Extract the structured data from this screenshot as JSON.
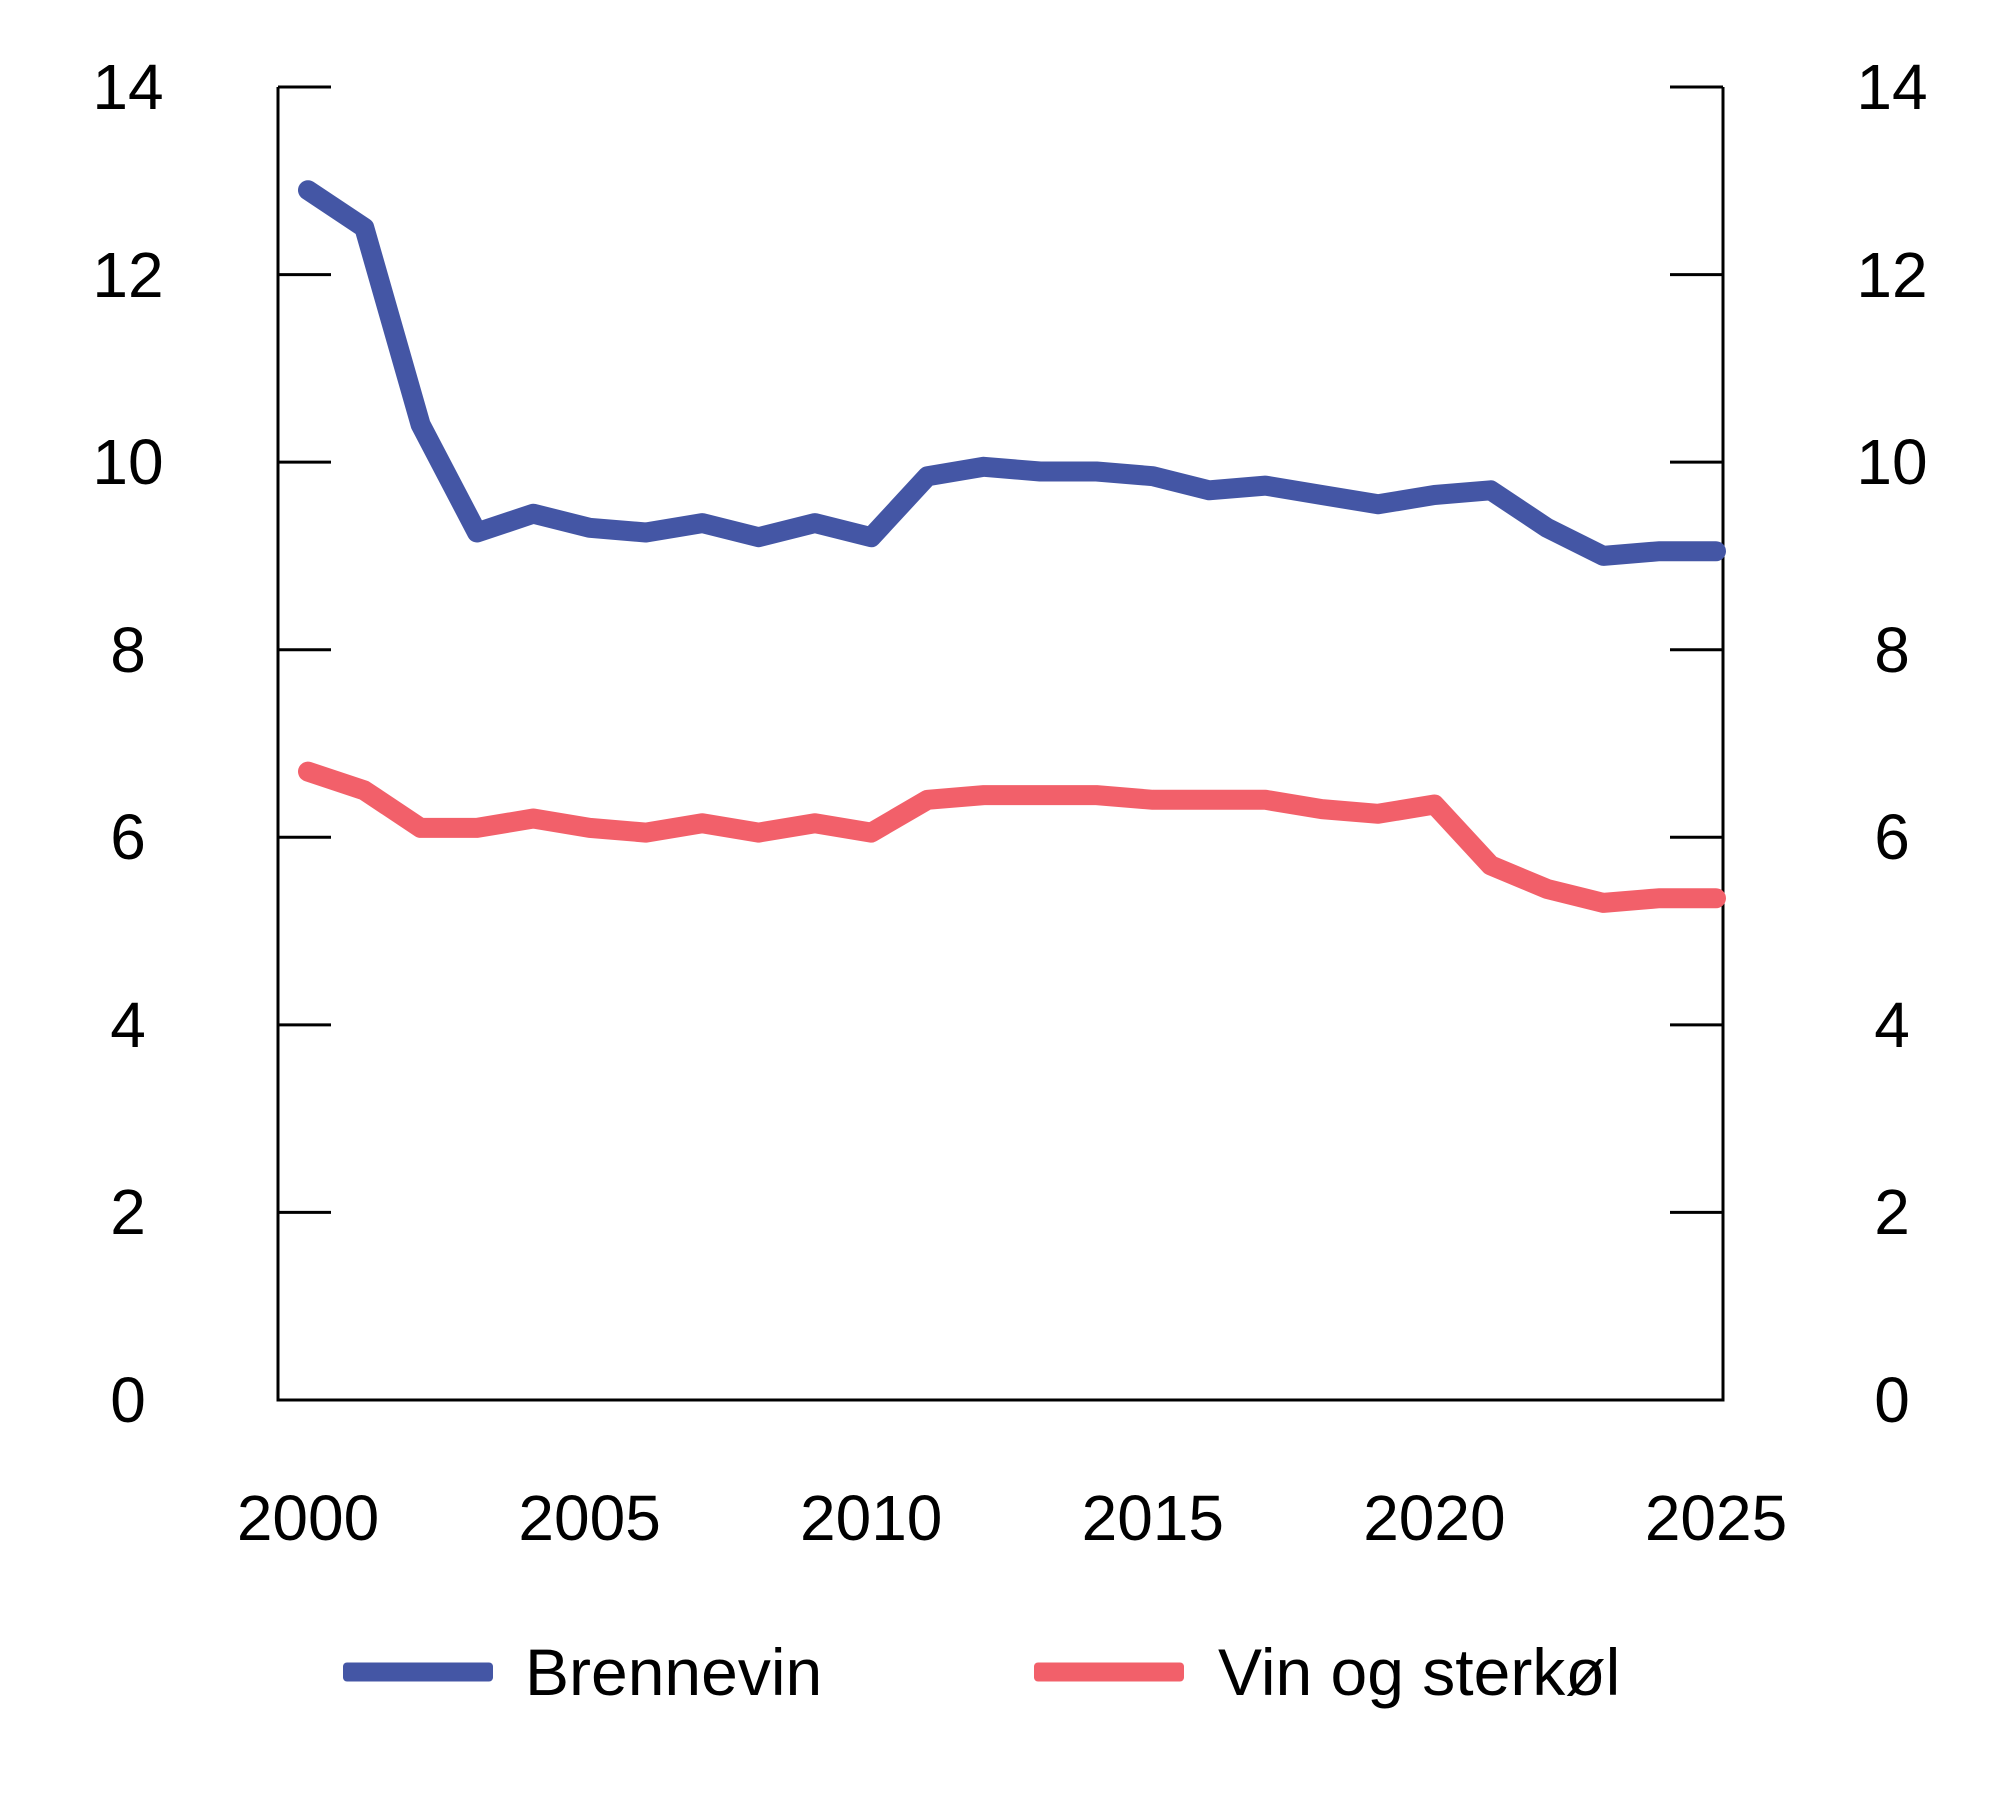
{
  "figure": {
    "background": "#ffffff",
    "text_color": "#000000",
    "axis_color": "#000000"
  },
  "chart_data": {
    "type": "line",
    "title": "",
    "xlabel": "",
    "ylabel": "",
    "x": [
      2000,
      2001,
      2002,
      2003,
      2004,
      2005,
      2006,
      2007,
      2008,
      2009,
      2010,
      2011,
      2012,
      2013,
      2014,
      2015,
      2016,
      2017,
      2018,
      2019,
      2020,
      2021,
      2022,
      2023,
      2024,
      2025
    ],
    "series": [
      {
        "name": "Brennevin",
        "color": "#4456a5",
        "values": [
          12.9,
          12.5,
          10.4,
          9.25,
          9.45,
          9.3,
          9.25,
          9.35,
          9.2,
          9.35,
          9.2,
          9.85,
          9.95,
          9.9,
          9.9,
          9.85,
          9.7,
          9.75,
          9.65,
          9.55,
          9.65,
          9.7,
          9.3,
          9.0,
          9.05,
          9.05
        ]
      },
      {
        "name": "Vin og sterkøl",
        "color": "#f2606a",
        "values": [
          6.7,
          6.5,
          6.1,
          6.1,
          6.2,
          6.1,
          6.05,
          6.15,
          6.05,
          6.15,
          6.05,
          6.4,
          6.45,
          6.45,
          6.45,
          6.4,
          6.4,
          6.4,
          6.3,
          6.25,
          6.35,
          5.7,
          5.45,
          5.3,
          5.35,
          5.35
        ]
      }
    ],
    "ylim": [
      0,
      14
    ],
    "yticks": [
      0,
      2,
      4,
      6,
      8,
      10,
      12,
      14
    ],
    "xticks": [
      2000,
      2005,
      2010,
      2015,
      2020,
      2025
    ],
    "grid": false,
    "legend_position": "bottom",
    "y_axis_labels_on_both_sides": true
  }
}
